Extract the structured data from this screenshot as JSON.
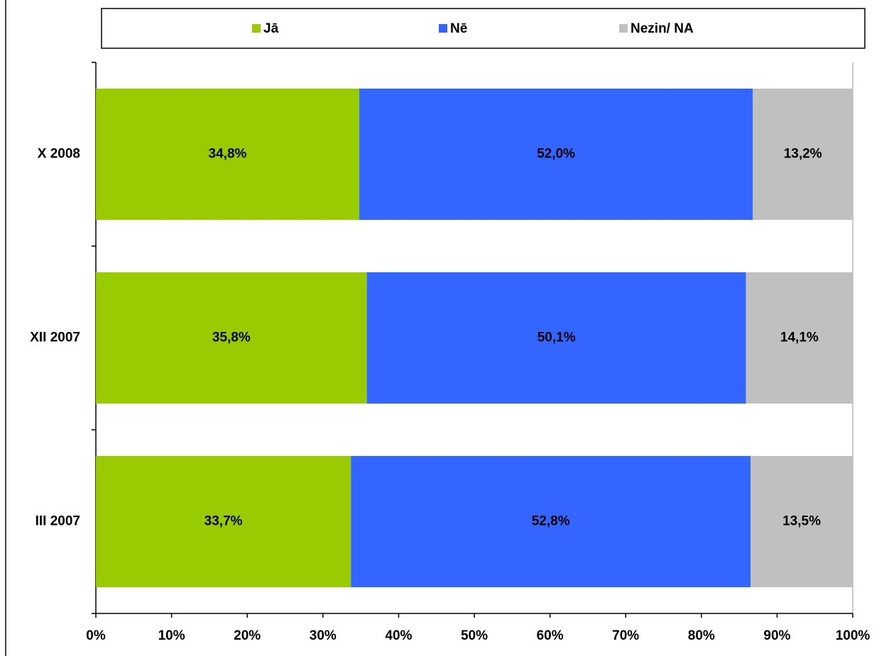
{
  "chart_data": {
    "type": "stacked_barh",
    "categories": [
      "X 2008",
      "XII 2007",
      "III 2007"
    ],
    "series": [
      {
        "name": "Jā",
        "color": "#99cc00",
        "values": [
          34.8,
          35.8,
          33.7
        ],
        "value_labels": [
          "34,8%",
          "35,8%",
          "33,7%"
        ]
      },
      {
        "name": "Nē",
        "color": "#3366ff",
        "values": [
          52.0,
          50.1,
          52.8
        ],
        "value_labels": [
          "52,0%",
          "50,1%",
          "52,8%"
        ]
      },
      {
        "name": "Nezin/ NA",
        "color": "#c0c0c0",
        "values": [
          13.2,
          14.1,
          13.5
        ],
        "value_labels": [
          "13,2%",
          "14,1%",
          "13,5%"
        ]
      }
    ],
    "xlim": [
      0,
      100
    ],
    "xticks": [
      {
        "value": 0,
        "label": "0%"
      },
      {
        "value": 10,
        "label": "10%"
      },
      {
        "value": 20,
        "label": "20%"
      },
      {
        "value": 30,
        "label": "30%"
      },
      {
        "value": 40,
        "label": "40%"
      },
      {
        "value": 50,
        "label": "50%"
      },
      {
        "value": 60,
        "label": "60%"
      },
      {
        "value": 70,
        "label": "70%"
      },
      {
        "value": 80,
        "label": "80%"
      },
      {
        "value": 90,
        "label": "90%"
      },
      {
        "value": 100,
        "label": "100%"
      }
    ],
    "legend": "top"
  }
}
